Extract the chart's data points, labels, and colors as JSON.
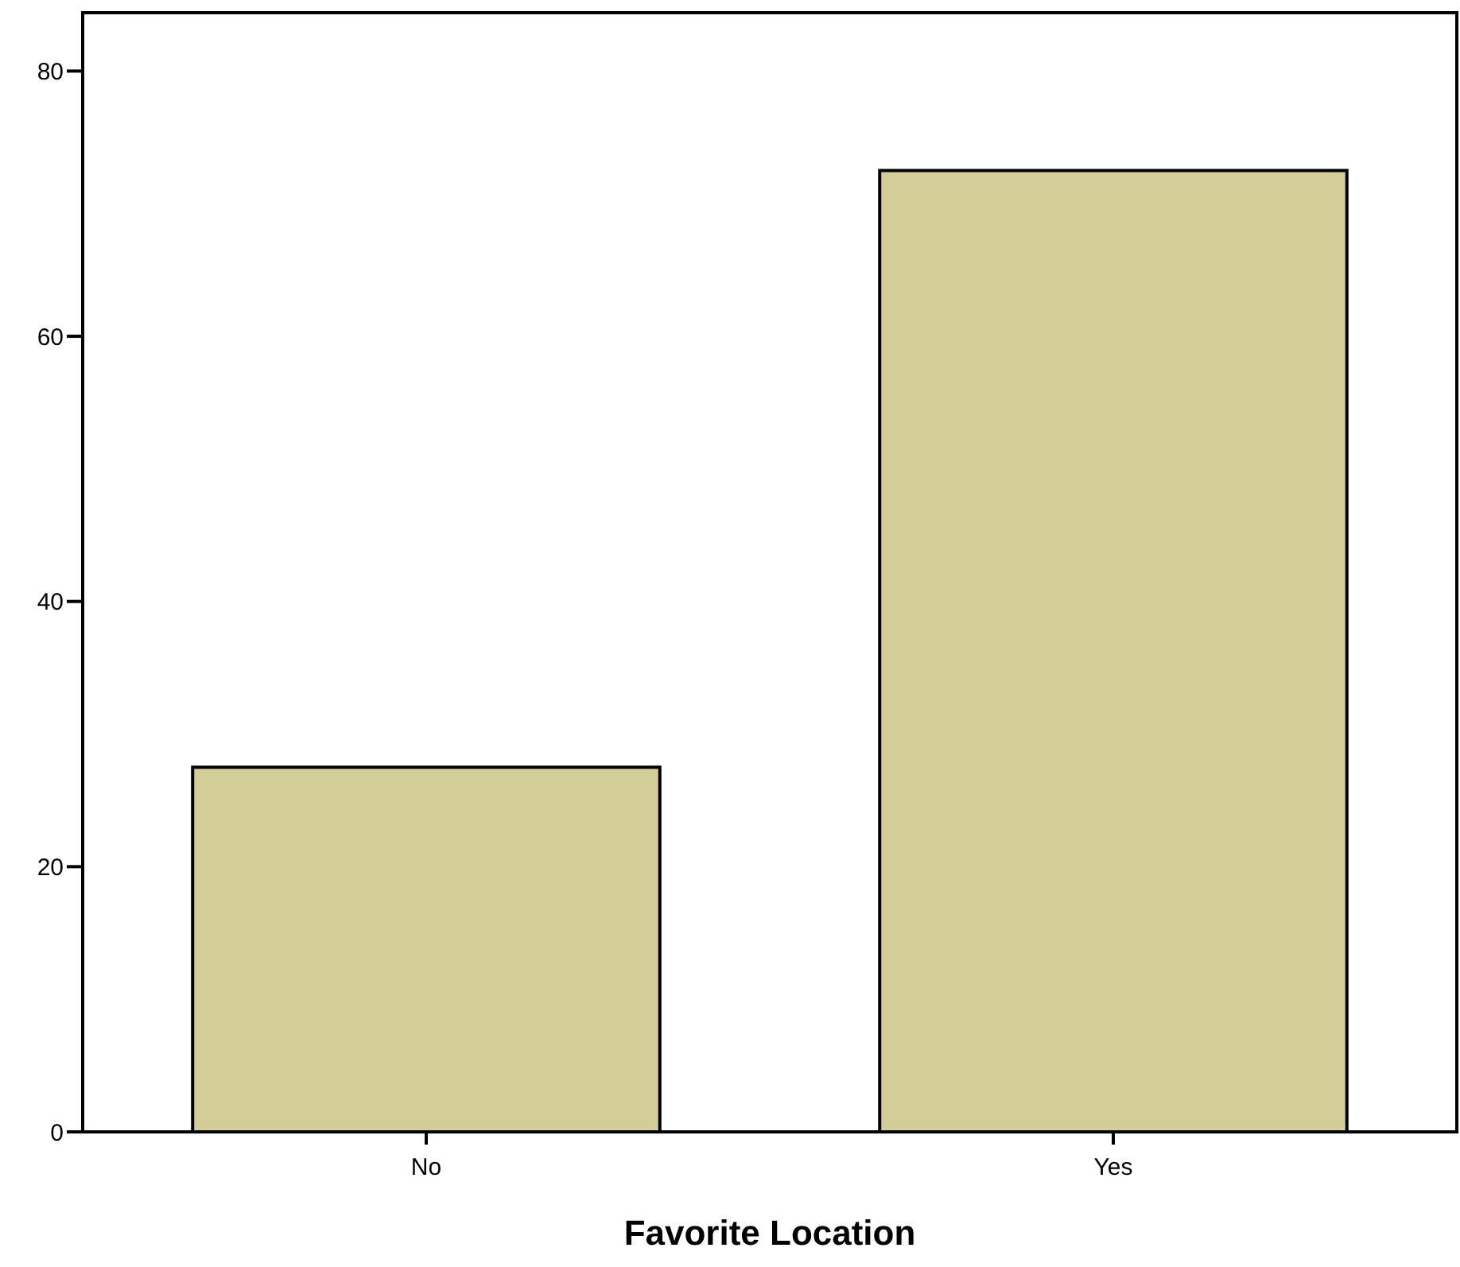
{
  "chart_data": {
    "type": "bar",
    "xlabel": "Favorite Location",
    "categories": [
      "No",
      "Yes"
    ],
    "values": [
      27.5,
      72.5
    ],
    "color": "#d3cd98",
    "ylim": [
      0,
      84.4
    ],
    "yticks": [
      0,
      20,
      40,
      60,
      80
    ],
    "grid": false
  }
}
